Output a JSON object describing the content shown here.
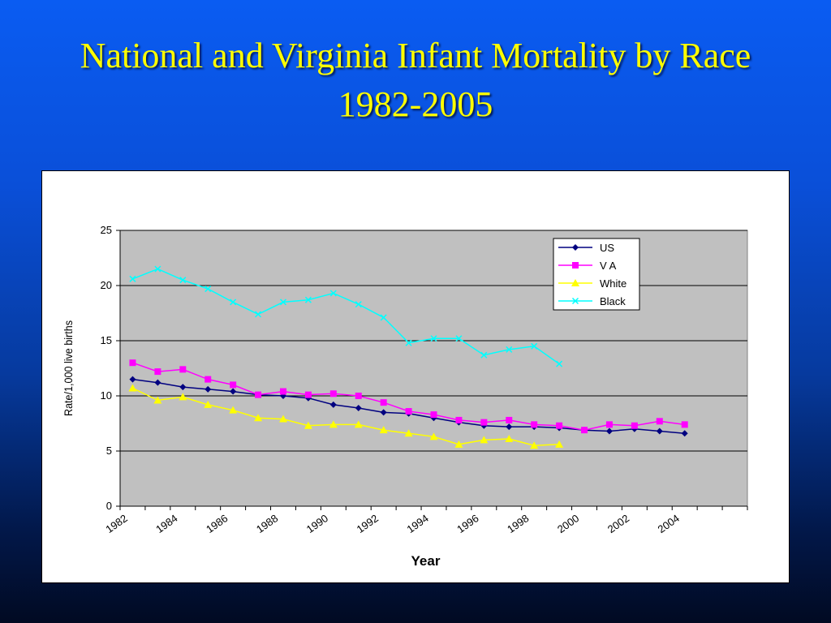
{
  "slide": {
    "title_line1": "National and Virginia Infant Mortality by Race",
    "title_line2": "1982-2005"
  },
  "chart_data": {
    "type": "line",
    "x": [
      1982,
      1983,
      1984,
      1985,
      1986,
      1987,
      1988,
      1989,
      1990,
      1991,
      1992,
      1993,
      1994,
      1995,
      1996,
      1997,
      1998,
      1999,
      2000,
      2001,
      2002,
      2003,
      2004,
      2005
    ],
    "xticks": [
      "1982",
      "1984",
      "1986",
      "1988",
      "1990",
      "1992",
      "1994",
      "1996",
      "1998",
      "2000",
      "2002",
      "2004"
    ],
    "yticks": [
      "0",
      "5",
      "10",
      "15",
      "20",
      "25"
    ],
    "ylim": [
      0,
      25
    ],
    "xlabel": "Year",
    "ylabel": "Rate/1,000 live births",
    "grid": true,
    "legend_position": "top-right",
    "series": [
      {
        "name": "US",
        "color": "#000080",
        "marker": "diamond",
        "values": [
          11.5,
          11.2,
          10.8,
          10.6,
          10.4,
          10.1,
          10.0,
          9.8,
          9.2,
          8.9,
          8.5,
          8.4,
          8.0,
          7.6,
          7.3,
          7.2,
          7.2,
          7.1,
          6.9,
          6.8,
          7.0,
          6.8,
          6.6,
          null
        ]
      },
      {
        "name": "V A",
        "color": "#ff00ff",
        "marker": "square",
        "values": [
          13.0,
          12.2,
          12.4,
          11.5,
          11.0,
          10.1,
          10.4,
          10.1,
          10.2,
          10.0,
          9.4,
          8.6,
          8.3,
          7.8,
          7.6,
          7.8,
          7.4,
          7.3,
          6.9,
          7.4,
          7.3,
          7.7,
          7.4,
          null
        ]
      },
      {
        "name": "White",
        "color": "#ffff00",
        "marker": "triangle",
        "values": [
          10.7,
          9.6,
          9.9,
          9.2,
          8.7,
          8.0,
          7.9,
          7.3,
          7.4,
          7.4,
          6.9,
          6.6,
          6.3,
          5.6,
          6.0,
          6.1,
          5.5,
          5.6,
          null,
          null,
          null,
          null,
          null,
          null
        ]
      },
      {
        "name": "Black",
        "color": "#00ffff",
        "marker": "x",
        "values": [
          20.6,
          21.5,
          20.5,
          19.7,
          18.5,
          17.4,
          18.5,
          18.7,
          19.3,
          18.3,
          17.1,
          14.8,
          15.2,
          15.2,
          13.7,
          14.2,
          14.5,
          12.9,
          null,
          null,
          null,
          null,
          null,
          null
        ]
      }
    ]
  }
}
